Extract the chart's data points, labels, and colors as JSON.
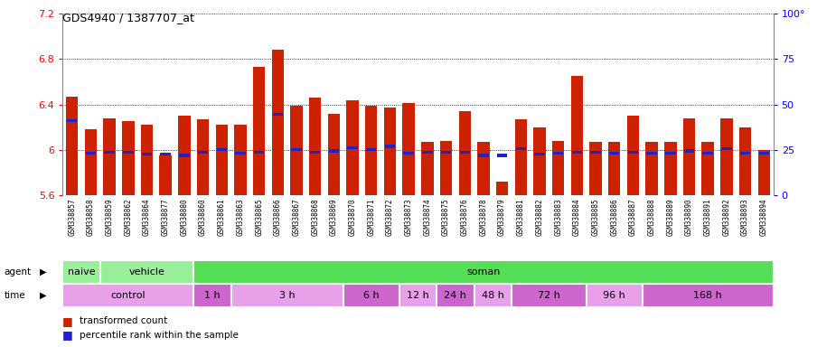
{
  "title": "GDS4940 / 1387707_at",
  "samples": [
    "GSM338857",
    "GSM338858",
    "GSM338859",
    "GSM338862",
    "GSM338864",
    "GSM338877",
    "GSM338880",
    "GSM338860",
    "GSM338861",
    "GSM338863",
    "GSM338865",
    "GSM338866",
    "GSM338867",
    "GSM338868",
    "GSM338869",
    "GSM338870",
    "GSM338871",
    "GSM338872",
    "GSM338873",
    "GSM338874",
    "GSM338875",
    "GSM338876",
    "GSM338878",
    "GSM338879",
    "GSM338881",
    "GSM338882",
    "GSM338883",
    "GSM338884",
    "GSM338885",
    "GSM338886",
    "GSM338887",
    "GSM338888",
    "GSM338889",
    "GSM338890",
    "GSM338891",
    "GSM338892",
    "GSM338893",
    "GSM338894"
  ],
  "red_values": [
    6.47,
    6.18,
    6.28,
    6.25,
    6.22,
    5.95,
    6.3,
    6.27,
    6.22,
    6.22,
    6.73,
    6.88,
    6.39,
    6.46,
    6.32,
    6.44,
    6.39,
    6.37,
    6.41,
    6.07,
    6.08,
    6.34,
    6.07,
    5.72,
    6.27,
    6.2,
    6.08,
    6.65,
    6.07,
    6.07,
    6.3,
    6.07,
    6.07,
    6.28,
    6.07,
    6.28,
    6.2,
    6.0
  ],
  "blue_values": [
    6.26,
    5.97,
    5.98,
    5.98,
    5.96,
    5.96,
    5.95,
    5.98,
    6.0,
    5.97,
    5.98,
    6.31,
    6.0,
    5.98,
    5.99,
    6.02,
    6.0,
    6.03,
    5.97,
    5.98,
    5.98,
    5.98,
    5.95,
    5.95,
    6.01,
    5.96,
    5.97,
    5.98,
    5.98,
    5.97,
    5.98,
    5.97,
    5.97,
    5.99,
    5.97,
    6.01,
    5.97,
    5.97
  ],
  "agent_groups": [
    {
      "label": "naive",
      "start": 0,
      "end": 2,
      "color": "#99EE99"
    },
    {
      "label": "vehicle",
      "start": 2,
      "end": 7,
      "color": "#99EE99"
    },
    {
      "label": "soman",
      "start": 7,
      "end": 38,
      "color": "#55DD55"
    }
  ],
  "time_groups": [
    {
      "label": "control",
      "start": 0,
      "end": 7,
      "color": "#E8A0E8"
    },
    {
      "label": "1 h",
      "start": 7,
      "end": 9,
      "color": "#CC66CC"
    },
    {
      "label": "3 h",
      "start": 9,
      "end": 15,
      "color": "#E8A0E8"
    },
    {
      "label": "6 h",
      "start": 15,
      "end": 18,
      "color": "#CC66CC"
    },
    {
      "label": "12 h",
      "start": 18,
      "end": 20,
      "color": "#E8A0E8"
    },
    {
      "label": "24 h",
      "start": 20,
      "end": 22,
      "color": "#CC66CC"
    },
    {
      "label": "48 h",
      "start": 22,
      "end": 24,
      "color": "#E8A0E8"
    },
    {
      "label": "72 h",
      "start": 24,
      "end": 28,
      "color": "#CC66CC"
    },
    {
      "label": "96 h",
      "start": 28,
      "end": 31,
      "color": "#E8A0E8"
    },
    {
      "label": "168 h",
      "start": 31,
      "end": 38,
      "color": "#CC66CC"
    }
  ],
  "ymin": 5.6,
  "ymax": 7.2,
  "yticks_left": [
    5.6,
    6.0,
    6.4,
    6.8,
    7.2
  ],
  "yticks_right": [
    0,
    25,
    50,
    75,
    100
  ],
  "bar_color": "#CC2200",
  "blue_color": "#2222CC",
  "xtick_bg_color": "#D8D8D8"
}
